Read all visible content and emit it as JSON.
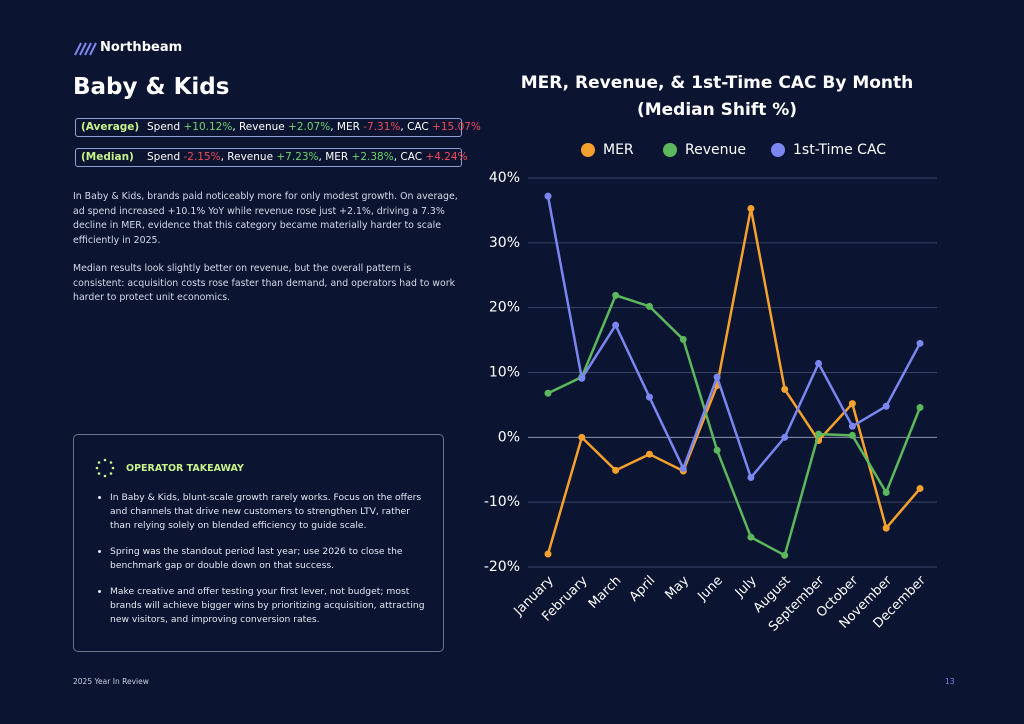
{
  "header": {
    "brand": "Northbeam",
    "title": "Baby & Kids"
  },
  "stats": [
    {
      "tag": "(Average)",
      "items": [
        {
          "label": "Spend",
          "value": "+10.12%",
          "tone": "positive"
        },
        {
          "label": ", Revenue",
          "value": "+2.07%",
          "tone": "positive"
        },
        {
          "label": ", MER",
          "value": "-7.31%",
          "tone": "negative"
        },
        {
          "label": ", CAC",
          "value": "+15.07%",
          "tone": "negative"
        }
      ]
    },
    {
      "tag": "(Median)",
      "items": [
        {
          "label": "Spend",
          "value": "-2.15%",
          "tone": "negative"
        },
        {
          "label": ", Revenue",
          "value": "+7.23%",
          "tone": "positive"
        },
        {
          "label": ", MER",
          "value": "+2.38%",
          "tone": "positive"
        },
        {
          "label": ", CAC",
          "value": "+4.24%",
          "tone": "negative"
        }
      ]
    }
  ],
  "paragraphs": [
    "In Baby & Kids, brands paid noticeably more for only modest growth. On average, ad spend increased +10.1% YoY while revenue rose just +2.1%, driving a 7.3% decline in MER, evidence that this category became materially harder to scale efficiently in 2025.",
    "Median results look slightly better on revenue, but the overall pattern is consistent: acquisition costs rose faster than demand, and operators had to work harder to protect unit economics."
  ],
  "takeaway": {
    "title": "OPERATOR TAKEAWAY",
    "bullets": [
      "In Baby & Kids, blunt-scale growth rarely works. Focus on the offers and channels that drive new customers to strengthen LTV, rather than relying solely on blended efficiency to guide scale.",
      "Spring was the standout period last year; use 2026 to close the benchmark gap or double down on that success.",
      "Make creative and offer testing your first lever, not budget; most brands will achieve bigger wins by prioritizing acquisition, attracting new visitors, and improving conversion rates."
    ]
  },
  "footer": {
    "left": "2025 Year In Review",
    "page": "13"
  },
  "chart_data": {
    "type": "line",
    "title": [
      "MER, Revenue, & 1st-Time CAC By Month",
      "(Median Shift %)"
    ],
    "categories": [
      "January",
      "February",
      "March",
      "April",
      "May",
      "June",
      "July",
      "August",
      "September",
      "October",
      "November",
      "December"
    ],
    "series": [
      {
        "name": "MER",
        "color": "#f4a12e",
        "values": [
          -18,
          0,
          -5.1,
          -2.6,
          -5.2,
          8,
          35.3,
          7.4,
          -0.5,
          5.2,
          -14,
          -7.9
        ]
      },
      {
        "name": "Revenue",
        "color": "#5cb85c",
        "values": [
          6.8,
          9.3,
          21.9,
          20.2,
          15.1,
          -2,
          -15.4,
          -18.2,
          0.5,
          0.3,
          -8.5,
          4.6
        ]
      },
      {
        "name": "1st-Time CAC",
        "color": "#7b86f0",
        "values": [
          37.2,
          9.1,
          17.3,
          6.2,
          -4.8,
          9.3,
          -6.2,
          0,
          11.4,
          1.7,
          4.8,
          14.5
        ]
      }
    ],
    "ylim": [
      -20,
      40
    ],
    "yticks": [
      {
        "value": -20,
        "label": "-20%"
      },
      {
        "value": -10,
        "label": "-10%"
      },
      {
        "value": 0,
        "label": "0%"
      },
      {
        "value": 10,
        "label": "10%"
      },
      {
        "value": 20,
        "label": "20%"
      },
      {
        "value": 30,
        "label": "30%"
      },
      {
        "value": 40,
        "label": "40%"
      }
    ],
    "grid": true,
    "legend": "top"
  }
}
